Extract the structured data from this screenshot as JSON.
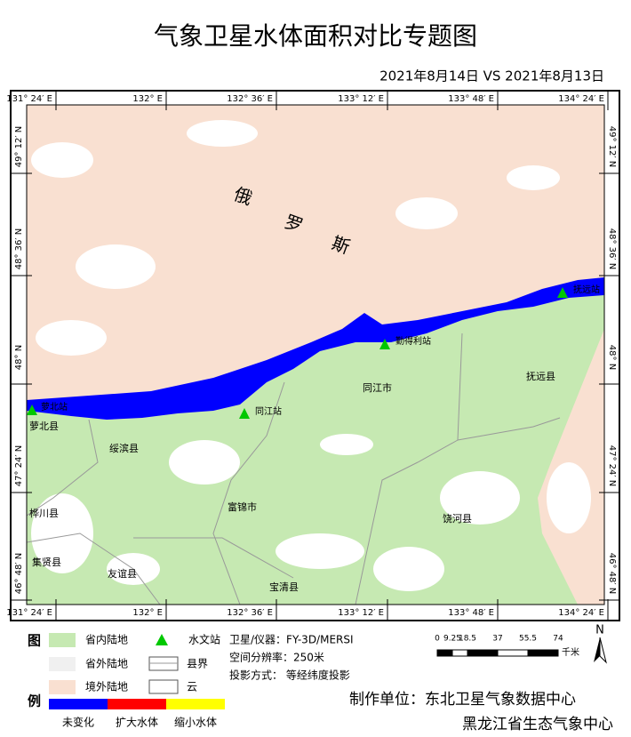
{
  "title": "气象卫星水体面积对比专题图",
  "subtitle": "2021年8月14日 VS 2021年8月13日",
  "map": {
    "lon_labels": [
      "131° 24′ E",
      "132° E",
      "132° 36′ E",
      "133° 12′ E",
      "133° 48′ E",
      "134° 24′ E"
    ],
    "lat_labels": [
      "49° 12′ N",
      "48° 36′ N",
      "48° N",
      "47° 24′ N",
      "46° 48′ N"
    ],
    "region_labels": [
      "俄",
      "罗",
      "斯"
    ],
    "stations": [
      "萝北站",
      "同江站",
      "勤得利站",
      "抚远站"
    ],
    "counties": [
      "萝北县",
      "绥滨县",
      "同江市",
      "抚远县",
      "桦川县",
      "富锦市",
      "饶河县",
      "集贤县",
      "友谊县",
      "宝清县"
    ]
  },
  "legend": {
    "heading": [
      "图",
      "例"
    ],
    "land": [
      "省内陆地",
      "省外陆地",
      "境外陆地"
    ],
    "station": "水文站",
    "boundary": "县界",
    "cloud": "云",
    "water": [
      "未变化",
      "扩大水体",
      "缩小水体"
    ]
  },
  "info": [
    "卫星/仪器：FY-3D/MERSI",
    "空间分辨率：250米",
    "投影方式：  等经纬度投影"
  ],
  "scale": {
    "ticks": [
      0,
      9.25,
      18.5,
      37,
      55.5,
      74
    ],
    "unit": "千米"
  },
  "north": "N",
  "producer": [
    "制作单位：东北卫星气象数据中心",
    "黑龙江省生态气象中心"
  ]
}
